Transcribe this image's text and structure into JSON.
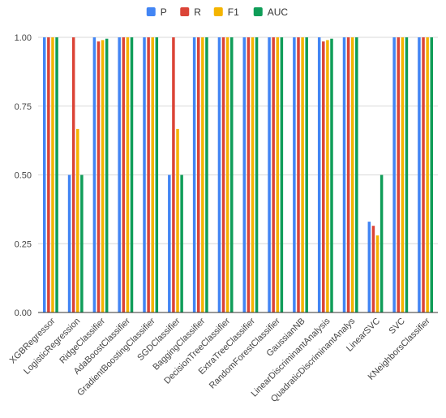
{
  "chart_data": {
    "type": "bar",
    "title": "",
    "xlabel": "",
    "ylabel": "",
    "ylim": [
      0,
      1
    ],
    "yticks": [
      "0.00",
      "0.25",
      "0.50",
      "0.75",
      "1.00"
    ],
    "grid": true,
    "legend_position": "top-center",
    "categories": [
      "XGBRegressor",
      "LogisticRegression",
      "RidgeClassifier",
      "AdaBoostClassifier",
      "GradientBoostingClassifier",
      "SGDClassifier",
      "BaggingClassifier",
      "DecisionTreeClassifier",
      "ExtraTreeClassifier",
      "RandomForestClassifier",
      "GaussianNB",
      "LinearDiscriminantAnalysis",
      "QuadraticDiscriminantAnalys",
      "LinearSVC",
      "SVC",
      "KNeighborsClassifier"
    ],
    "series": [
      {
        "name": "P",
        "color": "#4285F4",
        "values": [
          1.0,
          0.5,
          1.0,
          1.0,
          1.0,
          0.5,
          1.0,
          1.0,
          1.0,
          1.0,
          1.0,
          1.0,
          1.0,
          0.33,
          1.0,
          1.0
        ]
      },
      {
        "name": "R",
        "color": "#DB4437",
        "values": [
          1.0,
          1.0,
          0.985,
          1.0,
          1.0,
          1.0,
          1.0,
          1.0,
          1.0,
          1.0,
          1.0,
          0.985,
          1.0,
          0.315,
          1.0,
          1.0
        ]
      },
      {
        "name": "F1",
        "color": "#F4B400",
        "values": [
          1.0,
          0.667,
          0.99,
          1.0,
          1.0,
          0.667,
          1.0,
          1.0,
          1.0,
          1.0,
          1.0,
          0.99,
          1.0,
          0.28,
          1.0,
          1.0
        ]
      },
      {
        "name": "AUC",
        "color": "#0F9D58",
        "values": [
          1.0,
          0.5,
          0.995,
          1.0,
          1.0,
          0.5,
          1.0,
          1.0,
          1.0,
          1.0,
          1.0,
          0.995,
          1.0,
          0.5,
          1.0,
          1.0
        ]
      }
    ]
  }
}
